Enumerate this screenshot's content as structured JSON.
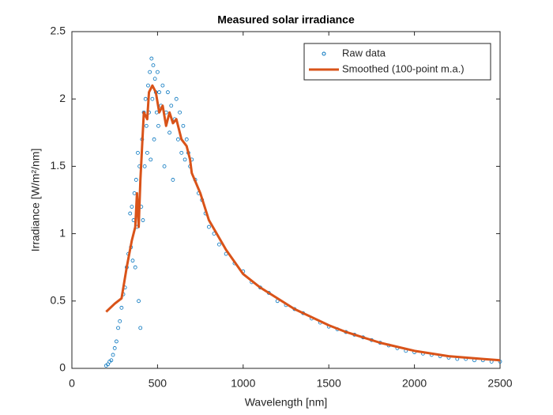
{
  "chart_data": {
    "type": "line",
    "title": "Measured solar irradiance",
    "x_label": "Wavelength [nm]",
    "y_label": "Irradiance [W/m²/nm]",
    "xlim": [
      0,
      2500
    ],
    "ylim": [
      0,
      2.5
    ],
    "xticks": [
      0,
      500,
      1000,
      1500,
      2000,
      2500
    ],
    "yticks": [
      0,
      0.5,
      1,
      1.5,
      2,
      2.5
    ],
    "grid": false,
    "legend": "northeast",
    "series": [
      {
        "name": "Raw data",
        "color": "#0072bd",
        "style": "markers",
        "x": [
          200,
          210,
          220,
          230,
          240,
          250,
          260,
          270,
          280,
          290,
          300,
          310,
          320,
          330,
          340,
          345,
          350,
          355,
          360,
          365,
          370,
          375,
          380,
          385,
          390,
          395,
          400,
          405,
          410,
          415,
          420,
          425,
          430,
          435,
          440,
          445,
          450,
          455,
          460,
          465,
          470,
          475,
          480,
          485,
          490,
          495,
          500,
          505,
          510,
          520,
          530,
          540,
          550,
          560,
          570,
          580,
          590,
          600,
          610,
          620,
          630,
          640,
          650,
          660,
          670,
          680,
          690,
          700,
          720,
          740,
          760,
          780,
          800,
          830,
          860,
          900,
          950,
          1000,
          1050,
          1100,
          1150,
          1200,
          1250,
          1300,
          1350,
          1400,
          1450,
          1500,
          1550,
          1600,
          1650,
          1700,
          1750,
          1800,
          1850,
          1900,
          1950,
          2000,
          2050,
          2100,
          2150,
          2200,
          2250,
          2300,
          2350,
          2400,
          2450,
          2500
        ],
        "values": [
          0.02,
          0.03,
          0.05,
          0.06,
          0.1,
          0.15,
          0.2,
          0.3,
          0.35,
          0.45,
          0.55,
          0.6,
          0.75,
          0.85,
          1.15,
          0.9,
          1.2,
          0.8,
          1.1,
          1.3,
          0.75,
          1.4,
          1.05,
          1.6,
          0.5,
          1.5,
          0.3,
          1.2,
          1.7,
          1.1,
          1.9,
          1.5,
          2.0,
          1.8,
          1.6,
          2.1,
          1.9,
          2.2,
          1.55,
          2.3,
          2.0,
          2.25,
          1.7,
          2.15,
          2.05,
          1.9,
          2.2,
          1.8,
          2.05,
          1.95,
          2.1,
          1.5,
          1.9,
          2.05,
          1.75,
          1.95,
          1.4,
          1.85,
          2.0,
          1.7,
          1.9,
          1.6,
          1.8,
          1.55,
          1.7,
          1.6,
          1.5,
          1.55,
          1.4,
          1.3,
          1.25,
          1.15,
          1.05,
          1.0,
          0.92,
          0.85,
          0.78,
          0.72,
          0.64,
          0.6,
          0.56,
          0.5,
          0.47,
          0.44,
          0.41,
          0.37,
          0.34,
          0.31,
          0.29,
          0.27,
          0.25,
          0.23,
          0.21,
          0.19,
          0.17,
          0.15,
          0.13,
          0.12,
          0.11,
          0.1,
          0.09,
          0.08,
          0.07,
          0.07,
          0.06,
          0.06,
          0.05,
          0.05
        ]
      },
      {
        "name": "Smoothed (100-point m.a.)",
        "color": "#d95319",
        "style": "line",
        "x": [
          200,
          250,
          290,
          320,
          350,
          370,
          380,
          390,
          400,
          420,
          440,
          450,
          470,
          490,
          510,
          530,
          550,
          570,
          590,
          610,
          640,
          670,
          690,
          700,
          750,
          800,
          900,
          1000,
          1100,
          1200,
          1300,
          1400,
          1500,
          1600,
          1700,
          1800,
          1900,
          2000,
          2100,
          2200,
          2300,
          2400,
          2500
        ],
        "values": [
          0.42,
          0.48,
          0.52,
          0.75,
          0.95,
          1.05,
          1.3,
          1.05,
          1.4,
          1.9,
          1.85,
          2.05,
          2.1,
          2.05,
          1.9,
          1.95,
          1.8,
          1.9,
          1.82,
          1.85,
          1.7,
          1.65,
          1.55,
          1.45,
          1.3,
          1.1,
          0.88,
          0.7,
          0.6,
          0.52,
          0.44,
          0.38,
          0.32,
          0.27,
          0.23,
          0.19,
          0.16,
          0.13,
          0.11,
          0.09,
          0.08,
          0.07,
          0.06
        ]
      }
    ]
  }
}
